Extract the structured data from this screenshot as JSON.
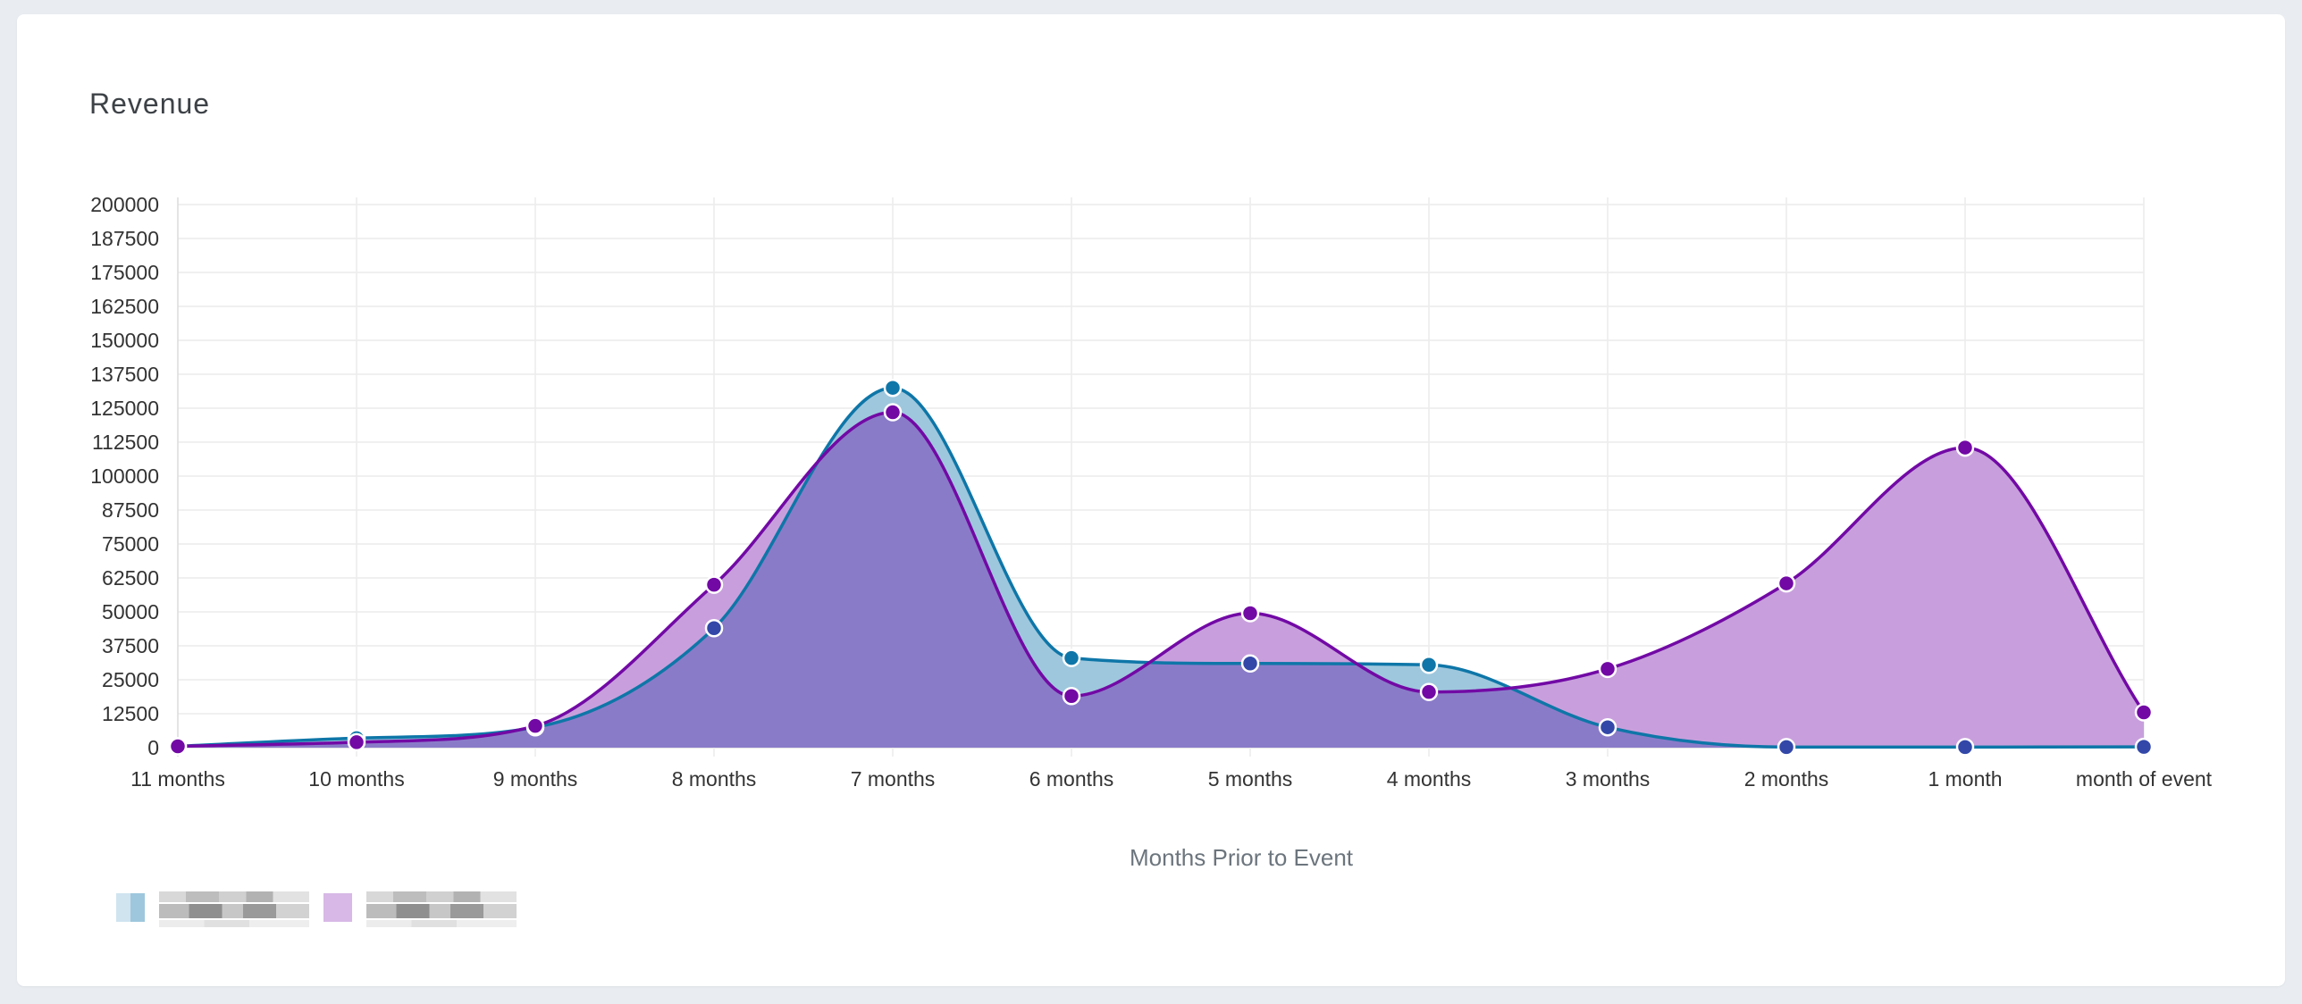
{
  "card": {
    "title": "Revenue"
  },
  "legend": {
    "items": [
      {
        "label": "",
        "color": "#0e76a8",
        "fill": "#9ec7dd"
      },
      {
        "label": "",
        "color": "#7209a5",
        "fill": "#c89fdc"
      }
    ]
  },
  "chart_data": {
    "type": "area",
    "title": "",
    "xlabel": "Months Prior to Event",
    "ylabel": "",
    "ylim": [
      0,
      200000
    ],
    "ytick_step": 12500,
    "grid": true,
    "legend_position": "bottom-left",
    "categories": [
      "11 months",
      "10 months",
      "9 months",
      "8 months",
      "7 months",
      "6 months",
      "5 months",
      "4 months",
      "3 months",
      "2 months",
      "1 month",
      "month of event"
    ],
    "series": [
      {
        "values": [
          500,
          3500,
          7500,
          44000,
          132500,
          33000,
          31000,
          30500,
          7500,
          200,
          200,
          300
        ],
        "line_color": "#0e76a8",
        "fill_color": "#9ec7dd"
      },
      {
        "values": [
          500,
          2000,
          8000,
          60000,
          123500,
          19000,
          49500,
          20500,
          29000,
          60500,
          110500,
          13000
        ],
        "line_color": "#7209a5",
        "fill_color": "#c89fdc"
      }
    ],
    "overlap_fill_color": "#8a7bc8",
    "overlap_line_color": "#3247a8"
  }
}
